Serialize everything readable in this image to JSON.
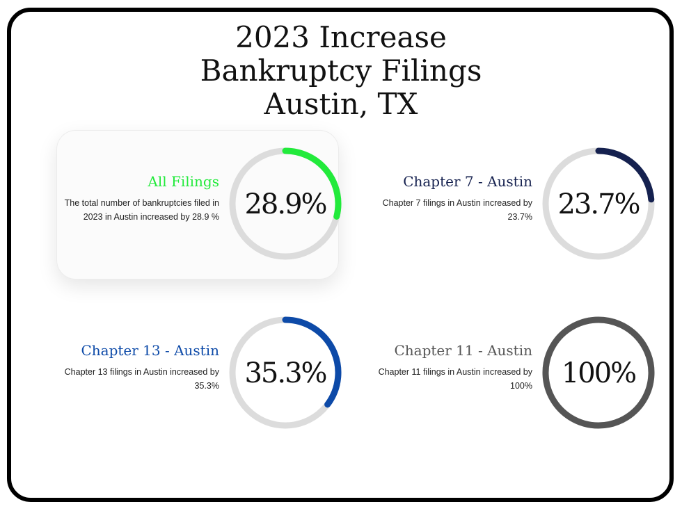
{
  "title_lines": [
    "2023 Increase",
    "Bankruptcy Filings",
    "Austin, TX"
  ],
  "colors": {
    "track": "#dcdcdc",
    "all_filings": "#22ea3b",
    "chapter7": "#15214f",
    "chapter13": "#0d4aa8",
    "chapter11": "#555555"
  },
  "chart_data": {
    "type": "radial-progress",
    "items": [
      {
        "heading": "All Filings",
        "description": "The total number of bankruptcies filed in 2023 in Austin increased by 28.9 %",
        "value": 28.9,
        "label": "28.9%",
        "color": "#22ea3b",
        "highlighted": true
      },
      {
        "heading": "Chapter 7 - Austin",
        "description": "Chapter 7 filings in Austin increased by 23.7%",
        "value": 23.7,
        "label": "23.7%",
        "color": "#15214f",
        "highlighted": false
      },
      {
        "heading": "Chapter 13 - Austin",
        "description": "Chapter 13 filings in Austin increased by 35.3%",
        "value": 35.3,
        "label": "35.3%",
        "color": "#0d4aa8",
        "highlighted": false
      },
      {
        "heading": "Chapter 11 - Austin",
        "description": "Chapter 11 filings in Austin increased by 100%",
        "value": 100,
        "label": "100%",
        "color": "#555555",
        "highlighted": false
      }
    ]
  }
}
